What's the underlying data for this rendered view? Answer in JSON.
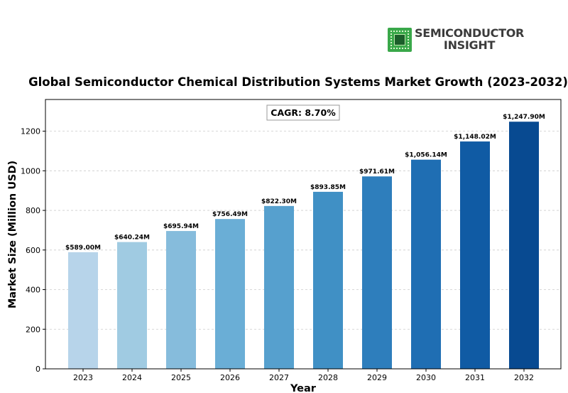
{
  "logo": {
    "line1": "SEMICONDUCTOR",
    "line2": "INSIGHT",
    "chip_color": "#3aa84a"
  },
  "chart_data": {
    "type": "bar",
    "title": "Global Semiconductor Chemical Distribution Systems Market Growth (2023-2032)",
    "xlabel": "Year",
    "ylabel": "Market Size (Million USD)",
    "categories": [
      "2023",
      "2024",
      "2025",
      "2026",
      "2027",
      "2028",
      "2029",
      "2030",
      "2031",
      "2032"
    ],
    "values": [
      589.0,
      640.24,
      695.94,
      756.49,
      822.3,
      893.85,
      971.61,
      1056.14,
      1148.02,
      1247.9
    ],
    "value_labels": [
      "$589.00M",
      "$640.24M",
      "$695.94M",
      "$756.49M",
      "$822.30M",
      "$893.85M",
      "$971.61M",
      "$1,056.14M",
      "$1,148.02M",
      "$1,247.90M"
    ],
    "colors": [
      "#b7d4ea",
      "#a0cbe2",
      "#86bcdc",
      "#6aaed6",
      "#56a0ce",
      "#4090c5",
      "#2e7ebc",
      "#1f6eb3",
      "#105ba4",
      "#084a91"
    ],
    "yticks": [
      0,
      200,
      400,
      600,
      800,
      1000,
      1200
    ],
    "ylim": [
      0,
      1360
    ],
    "grid": true,
    "annotation": "CAGR: 8.70%"
  }
}
